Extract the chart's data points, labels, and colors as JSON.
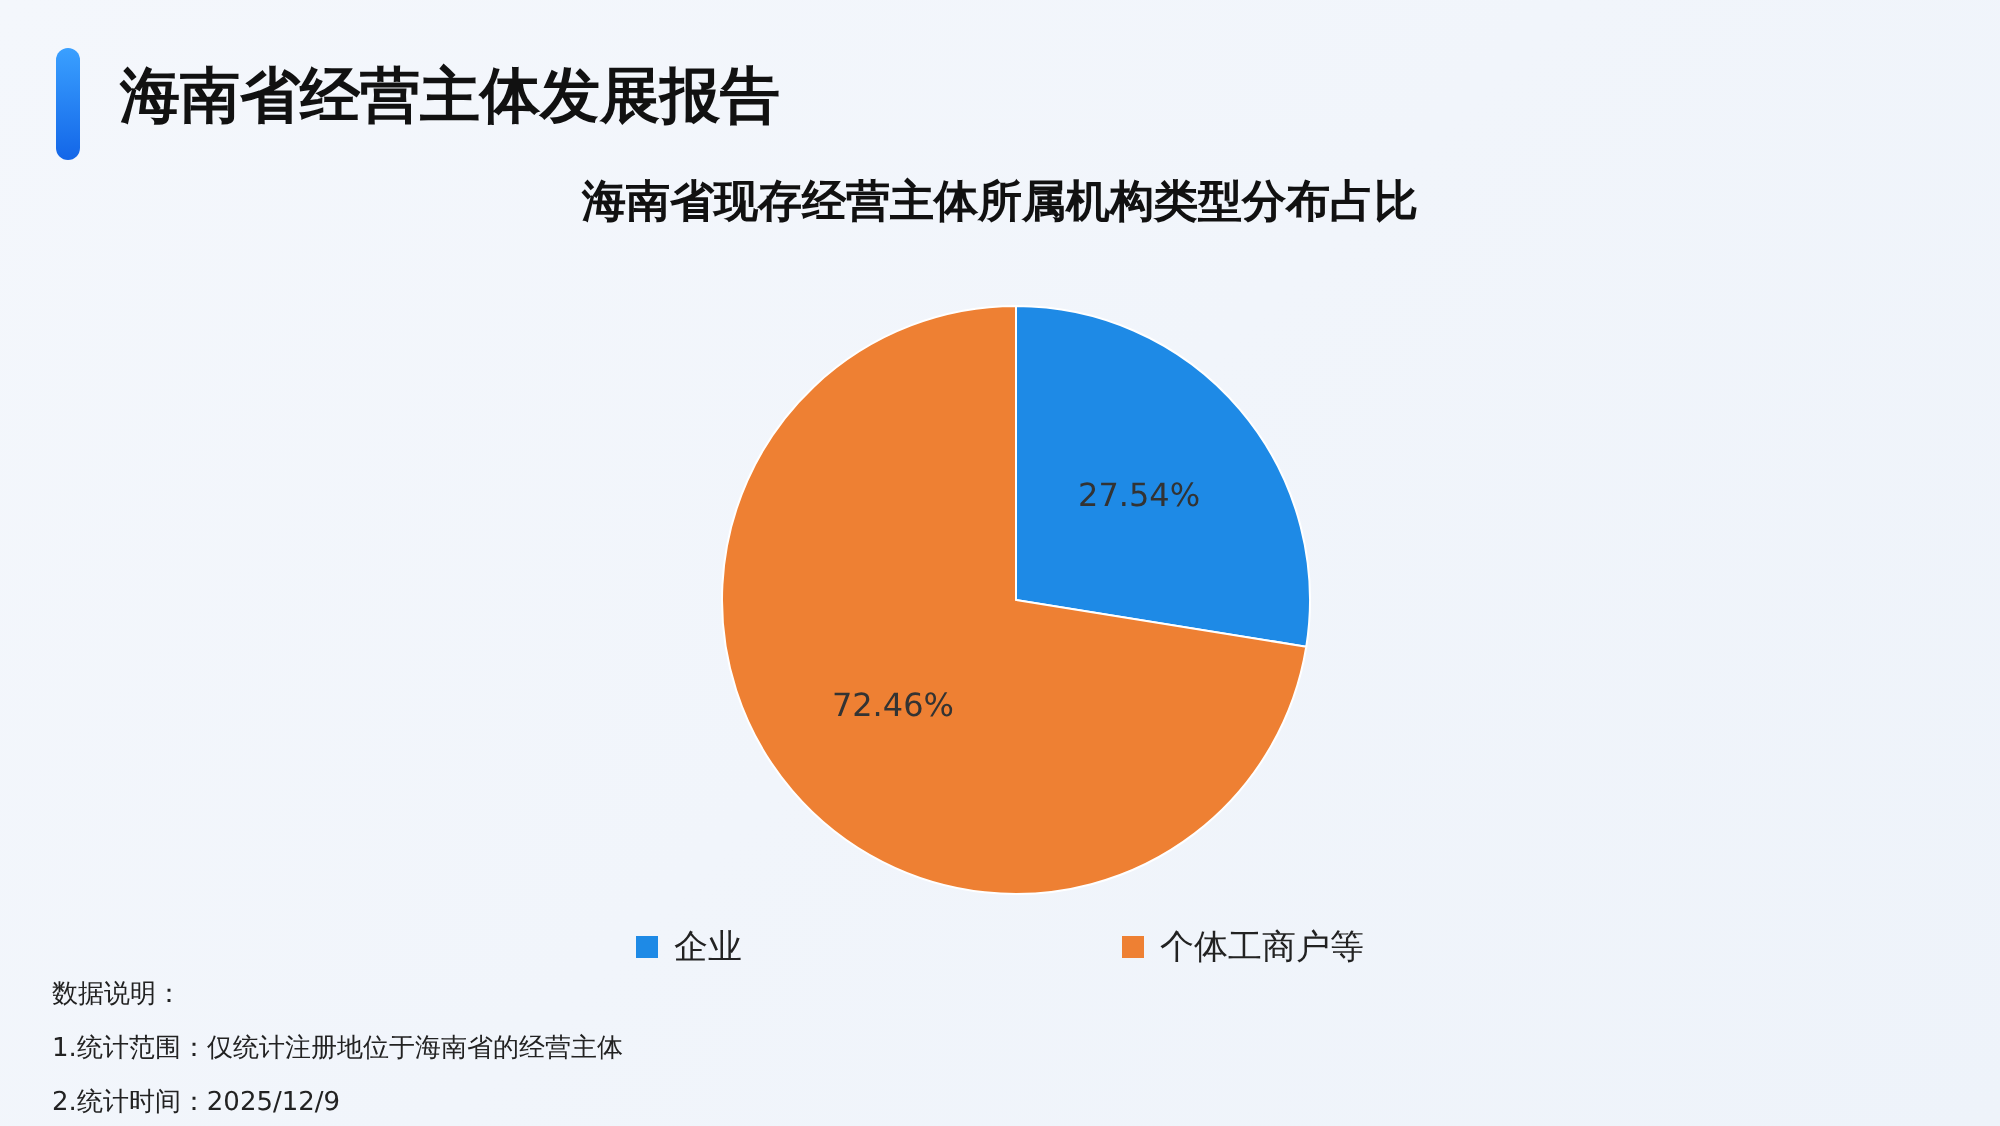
{
  "chart_data": {
    "type": "pie",
    "title": "海南省经营主体发展报告",
    "subtitle": "海南省现存经营主体所属机构类型分布占比",
    "categories": [
      "企业",
      "个体工商户等"
    ],
    "values": [
      27.54,
      72.46
    ],
    "colors": [
      "#1e8ae6",
      "#ee8033"
    ],
    "value_labels": [
      "27.54%",
      "72.46%"
    ],
    "legend": "bottom",
    "annotations": [
      "数据说明：",
      "1.统计范围：仅统计注册地位于海南省的经营主体",
      "2.统计时间：2025/12/9"
    ]
  }
}
